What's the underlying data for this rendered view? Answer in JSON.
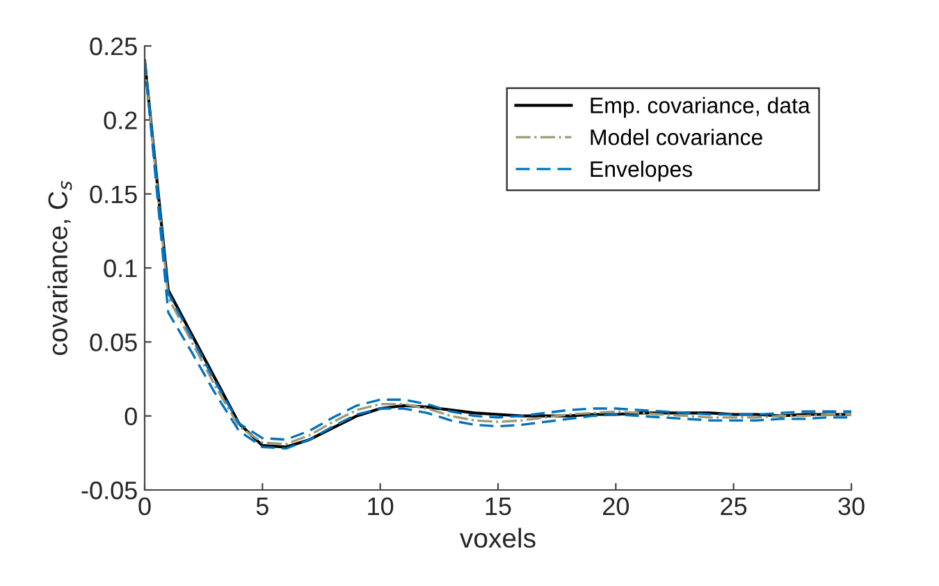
{
  "chart_data": {
    "type": "line",
    "xlabel": "voxels",
    "ylabel": "covariance, C$_{s}$",
    "x": [
      0,
      1,
      2,
      3,
      4,
      5,
      6,
      7,
      8,
      9,
      10,
      11,
      12,
      13,
      14,
      15,
      16,
      17,
      18,
      19,
      20,
      21,
      22,
      23,
      24,
      25,
      26,
      27,
      28,
      29,
      30
    ],
    "series": [
      {
        "name": "Emp. covariance, data",
        "color": "#000000",
        "line_style": "solid",
        "values": [
          0.24,
          0.085,
          0.055,
          0.025,
          -0.005,
          -0.02,
          -0.021,
          -0.016,
          -0.008,
          0.0,
          0.005,
          0.007,
          0.006,
          0.004,
          0.002,
          0.001,
          0.0,
          0.0,
          0.0,
          0.001,
          0.001,
          0.002,
          0.002,
          0.002,
          0.002,
          0.001,
          0.001,
          0.0,
          0.001,
          0.001,
          0.001
        ]
      },
      {
        "name": "Model covariance",
        "color": "#9a9a78",
        "line_style": "dashdot",
        "values": [
          0.24,
          0.08,
          0.05,
          0.02,
          -0.007,
          -0.018,
          -0.019,
          -0.013,
          -0.004,
          0.004,
          0.008,
          0.008,
          0.005,
          0.0,
          -0.003,
          -0.004,
          -0.003,
          -0.001,
          0.001,
          0.002,
          0.003,
          0.002,
          0.001,
          0.0,
          -0.001,
          -0.001,
          -0.001,
          0.0,
          0.0,
          0.001,
          0.001
        ]
      },
      {
        "name": "Envelopes",
        "color": "#0072bd",
        "line_style": "dashed",
        "values": [
          0.24,
          0.083,
          0.053,
          0.023,
          -0.005,
          -0.015,
          -0.016,
          -0.01,
          -0.001,
          0.007,
          0.011,
          0.011,
          0.008,
          0.003,
          0.0,
          -0.001,
          0.0,
          0.002,
          0.004,
          0.005,
          0.005,
          0.004,
          0.003,
          0.002,
          0.001,
          0.001,
          0.001,
          0.002,
          0.003,
          0.003,
          0.003
        ]
      },
      {
        "color": "#0072bd",
        "line_style": "dashed",
        "values": [
          0.24,
          0.07,
          0.043,
          0.015,
          -0.01,
          -0.021,
          -0.022,
          -0.016,
          -0.007,
          0.001,
          0.005,
          0.005,
          0.002,
          -0.003,
          -0.006,
          -0.007,
          -0.006,
          -0.004,
          -0.002,
          0.0,
          0.001,
          0.0,
          -0.001,
          -0.002,
          -0.003,
          -0.003,
          -0.003,
          -0.002,
          -0.002,
          -0.001,
          -0.001
        ]
      }
    ],
    "xlim": [
      0,
      30
    ],
    "xticks": [
      0,
      5,
      10,
      15,
      20,
      25,
      30
    ],
    "ylim": [
      -0.05,
      0.25
    ],
    "yticks": [
      -0.05,
      0,
      0.05,
      0.1,
      0.15,
      0.2,
      0.25
    ],
    "marker": "none",
    "grid": false,
    "legend": "top right"
  }
}
